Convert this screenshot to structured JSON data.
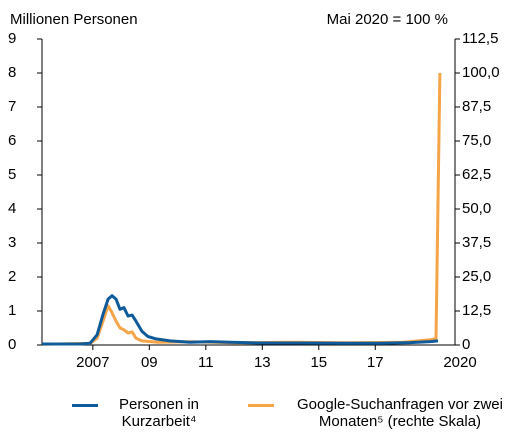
{
  "chart_data": {
    "type": "line",
    "ylabel": "Millionen Personen",
    "y2label": "Mai 2020 = 100 %",
    "xlim": [
      2005.2,
      2020
    ],
    "xticks": [
      {
        "value": 2007,
        "label": "2007"
      },
      {
        "value": 2009,
        "label": "09"
      },
      {
        "value": 2011,
        "label": "11"
      },
      {
        "value": 2013,
        "label": "13"
      },
      {
        "value": 2015,
        "label": "15"
      },
      {
        "value": 2017,
        "label": "17"
      },
      {
        "value": 2020,
        "label": "2020"
      }
    ],
    "ylim": [
      0,
      9
    ],
    "yticks": [
      0,
      1,
      2,
      3,
      4,
      5,
      6,
      7,
      8,
      9
    ],
    "y2lim": [
      0,
      112.5
    ],
    "y2ticks": [
      0,
      {
        "value": 12.5,
        "label": "12,5"
      },
      {
        "value": 25,
        "label": "25,0"
      },
      {
        "value": 37.5,
        "label": "37,5"
      },
      {
        "value": 50,
        "label": "50,0"
      },
      {
        "value": 62.5,
        "label": "62,5"
      },
      {
        "value": 75,
        "label": "75,0"
      },
      {
        "value": 87.5,
        "label": "87,5"
      },
      {
        "value": 100,
        "label": "100,0"
      },
      {
        "value": 112.5,
        "label": "112,5"
      }
    ],
    "series": [
      {
        "name": "Personen in Kurzarbeit⁴",
        "color": "#0f5a9a",
        "x": [
          2005.2,
          2006.55,
          2006.9,
          2007.15,
          2007.36,
          2007.54,
          2007.68,
          2007.82,
          2007.96,
          2008.1,
          2008.25,
          2008.39,
          2008.53,
          2008.74,
          2008.95,
          2009.24,
          2009.73,
          2010.44,
          2011.15,
          2011.86,
          2012.92,
          2014.34,
          2015.75,
          2017.17,
          2018.23,
          2018.94,
          2019.22
        ],
        "values": [
          0.03,
          0.03,
          0.05,
          0.3,
          0.9,
          1.35,
          1.45,
          1.35,
          1.05,
          1.1,
          0.85,
          0.88,
          0.7,
          0.4,
          0.25,
          0.18,
          0.12,
          0.08,
          0.1,
          0.08,
          0.06,
          0.06,
          0.05,
          0.05,
          0.07,
          0.1,
          0.12
        ]
      },
      {
        "name": "Google-Suchanfragen vor zwei Monaten⁵ (rechte Skala)",
        "color": "#f5a447",
        "axis": "y2",
        "x": [
          2005.2,
          2006.9,
          2007.15,
          2007.36,
          2007.54,
          2007.68,
          2007.82,
          2007.96,
          2008.1,
          2008.25,
          2008.39,
          2008.53,
          2008.74,
          2009.3,
          2010.5,
          2012,
          2014,
          2016,
          2018,
          2018.94,
          2019.15,
          2019.29
        ],
        "values": [
          0.3,
          0.6,
          2.5,
          8.8,
          14.4,
          11.9,
          8.8,
          6.3,
          5.6,
          4.4,
          4.8,
          2.5,
          1.5,
          1,
          1.2,
          0.8,
          1,
          0.8,
          1,
          1.9,
          2.3,
          100
        ]
      }
    ]
  }
}
